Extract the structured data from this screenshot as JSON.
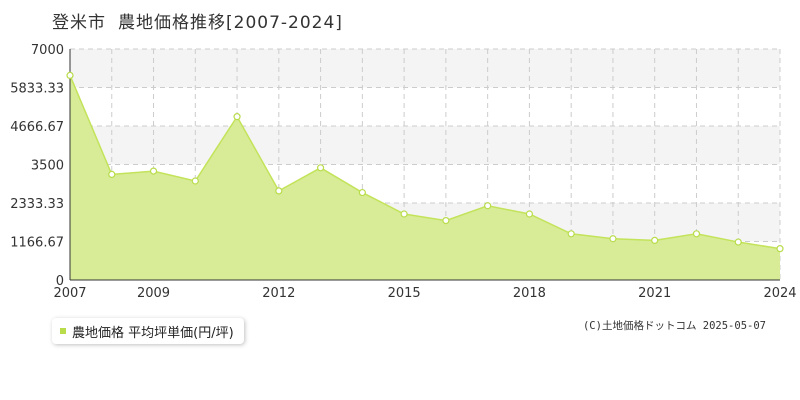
{
  "header": {
    "city": "登米市",
    "title": "農地価格推移[2007-2024]"
  },
  "legend": {
    "label": "農地価格 平均坪単価(円/坪)"
  },
  "credit": "(C)土地価格ドットコム 2025-05-07",
  "colors": {
    "fill": "#d8ec98",
    "line": "#c3e35a",
    "marker": "#b8dc4a",
    "grid": "#cccccc"
  },
  "chart_data": {
    "type": "area",
    "x": [
      2007,
      2008,
      2009,
      2010,
      2011,
      2012,
      2013,
      2014,
      2015,
      2016,
      2017,
      2018,
      2019,
      2020,
      2021,
      2022,
      2023,
      2024
    ],
    "x_tick_labels": [
      "2007",
      "2009",
      "2012",
      "2015",
      "2018",
      "2021",
      "2024"
    ],
    "y_tick_labels": [
      "0",
      "1166.67",
      "2333.33",
      "3500",
      "4666.67",
      "5833.33",
      "7000"
    ],
    "series": [
      {
        "name": "農地価格 平均坪単価(円/坪)",
        "values": [
          6200,
          3200,
          3300,
          3000,
          4950,
          2700,
          3400,
          2650,
          2000,
          1800,
          2250,
          2000,
          1400,
          1250,
          1200,
          1400,
          1150,
          950
        ]
      }
    ],
    "ylim": [
      0,
      7000
    ],
    "xlim": [
      2007,
      2024
    ],
    "grid": true,
    "legend": "bottom-left"
  }
}
